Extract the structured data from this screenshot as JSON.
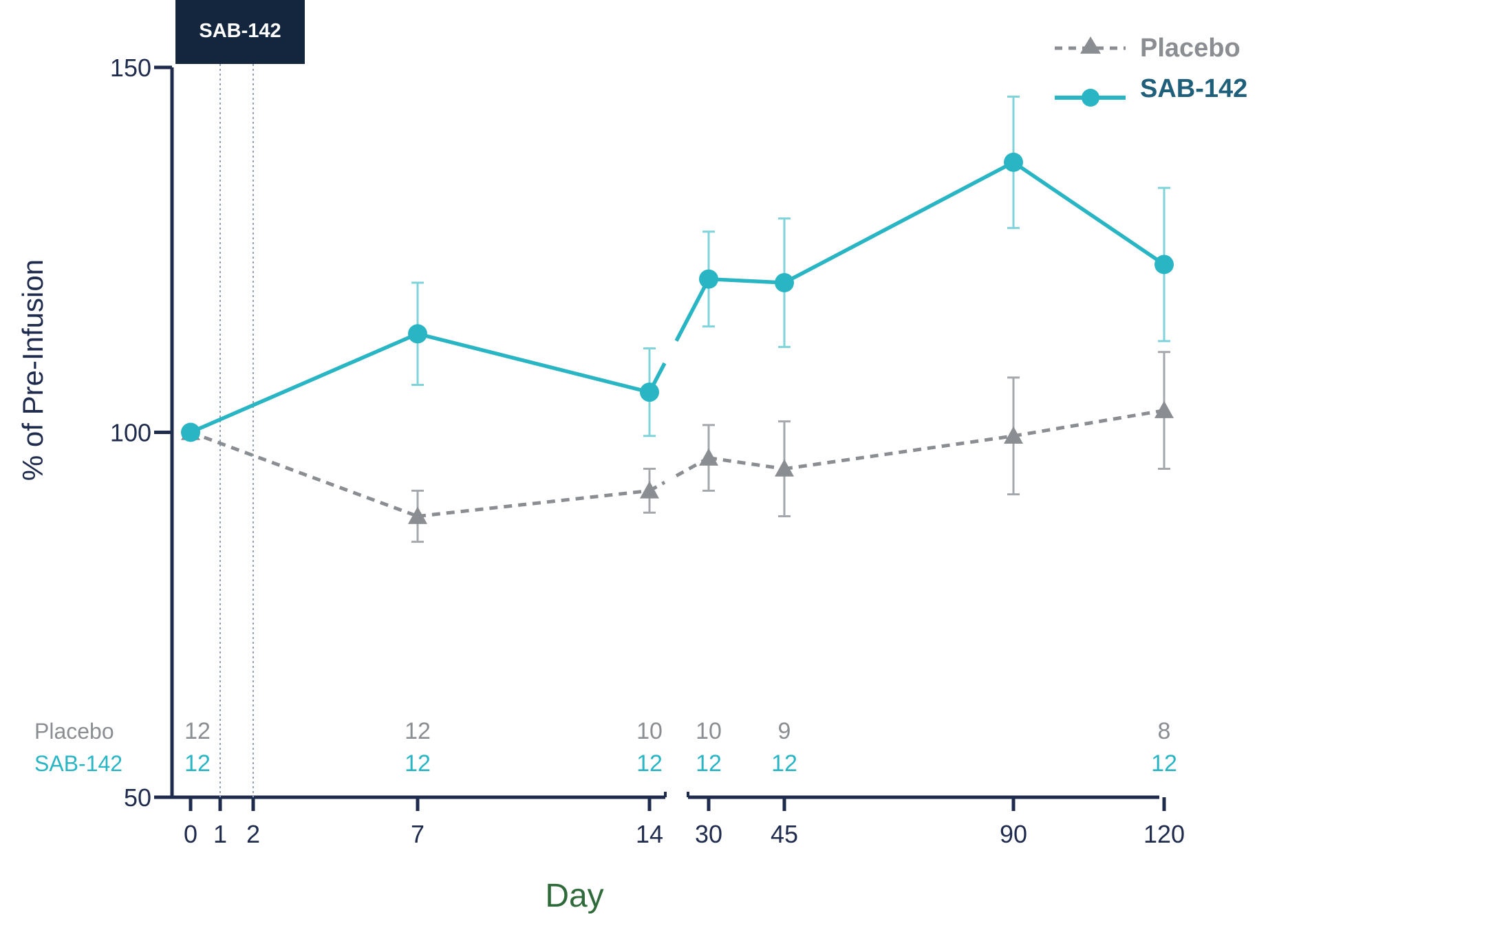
{
  "chart_data": {
    "type": "line",
    "ylabel": "% of Pre-Infusion",
    "xlabel": "Day",
    "ylim": [
      50,
      150
    ],
    "y_ticks": [
      50,
      100,
      150
    ],
    "x_tick_labels": [
      "0",
      "1",
      "2",
      "7",
      "14",
      "30",
      "45",
      "90",
      "120"
    ],
    "axis_break": "between 14 and 30",
    "dosing_banner": "SAB-142",
    "dosing_days": [
      "1",
      "2"
    ],
    "legend_position": "top-right",
    "series": [
      {
        "name": "Placebo",
        "style": "dashed",
        "marker": "triangle",
        "color": "#8a8d91",
        "x": [
          "0",
          "7",
          "14",
          "30",
          "45",
          "90",
          "120"
        ],
        "values": [
          100,
          88.5,
          92,
          96.5,
          95,
          99.5,
          103
        ],
        "error": [
          0,
          3.5,
          3,
          4.5,
          6.5,
          8,
          8
        ],
        "n_row_label": "Placebo",
        "n_counts": [
          {
            "day": "0",
            "n": "12"
          },
          {
            "day": "7",
            "n": "12"
          },
          {
            "day": "14",
            "n": "10"
          },
          {
            "day": "30",
            "n": "10"
          },
          {
            "day": "45",
            "n": "9"
          },
          {
            "day": "120",
            "n": "8"
          }
        ]
      },
      {
        "name": "SAB-142",
        "style": "solid",
        "marker": "circle",
        "color": "#29b5c3",
        "x": [
          "0",
          "7",
          "14",
          "30",
          "45",
          "90",
          "120"
        ],
        "values": [
          100,
          113.5,
          105.5,
          121,
          120.5,
          137,
          123
        ],
        "error": [
          0,
          7,
          6,
          6.5,
          8.8,
          9,
          10.5
        ],
        "n_row_label": "SAB-142",
        "n_counts": [
          {
            "day": "0",
            "n": "12"
          },
          {
            "day": "7",
            "n": "12"
          },
          {
            "day": "14",
            "n": "12"
          },
          {
            "day": "30",
            "n": "12"
          },
          {
            "day": "45",
            "n": "12"
          },
          {
            "day": "120",
            "n": "12"
          }
        ]
      }
    ],
    "colors": {
      "axis": "#1f2b4d",
      "banner_bg": "#13263d",
      "banner_text": "#ffffff",
      "xlabel": "#2f6b3a",
      "ylabel": "#1f2b4d",
      "legend_sab": "#1f5f7a",
      "legend_placebo": "#8a8d91"
    }
  }
}
